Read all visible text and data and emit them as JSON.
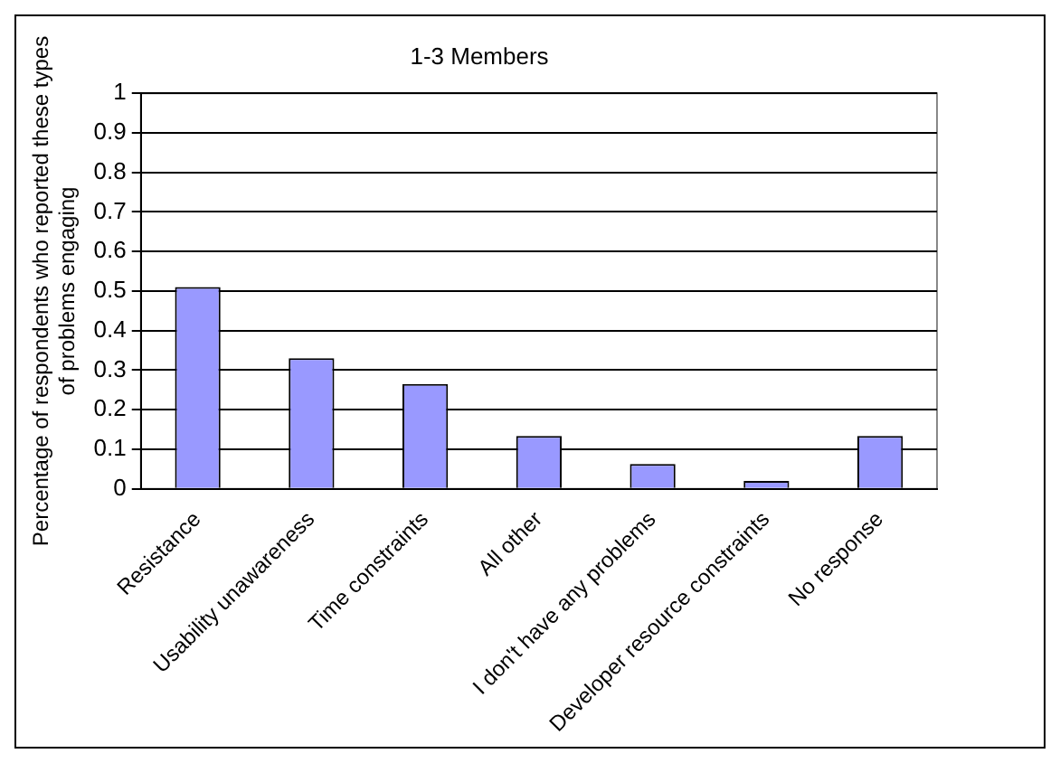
{
  "chart_data": {
    "type": "bar",
    "title": "1-3 Members",
    "ylabel": "Percentage of respondents who reported these types of problems engaging",
    "categories": [
      "Resistance",
      "Usability unawareness",
      "Time constraints",
      "All other",
      "I don't have any problems",
      "Developer resource constraints",
      "No response"
    ],
    "values": [
      0.51,
      0.33,
      0.265,
      0.134,
      0.063,
      0.02,
      0.134
    ],
    "color": "#9999ff",
    "ylim": [
      0,
      1
    ],
    "yticks": [
      0,
      0.1,
      0.2,
      0.3,
      0.4,
      0.5,
      0.6,
      0.7,
      0.8,
      0.9,
      1
    ],
    "grid": "y",
    "legend": false
  }
}
